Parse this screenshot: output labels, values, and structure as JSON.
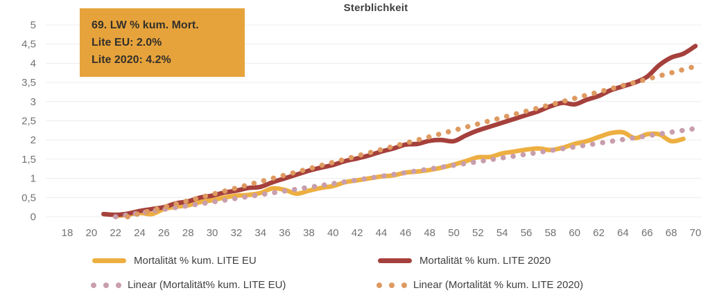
{
  "colors": {
    "gridline": "#ECECEC",
    "axis_label": "#757070",
    "title_text": "#3F3F3F",
    "legend_text": "#404040",
    "annotation_bg": "#E7A33B",
    "annotation_text": "#33302B"
  },
  "annotation": {
    "lines": [
      "69. LW % kum. Mort.",
      "Lite EU: 2.0%",
      "Lite 2020: 4.2%"
    ]
  },
  "chart_data": {
    "type": "line",
    "title": "Sterblichkeit",
    "xlabel": "",
    "ylabel": "",
    "x_range": [
      18,
      70
    ],
    "ylim": [
      0,
      5
    ],
    "grid": "horizontal",
    "legend_position": "bottom",
    "x_ticks": [
      18,
      20,
      22,
      24,
      26,
      28,
      30,
      32,
      34,
      36,
      38,
      40,
      42,
      44,
      46,
      48,
      50,
      52,
      54,
      56,
      58,
      60,
      62,
      64,
      66,
      68,
      70
    ],
    "y_ticks": [
      0,
      0.5,
      1,
      1.5,
      2,
      2.5,
      3,
      3.5,
      4,
      4.5,
      5
    ],
    "y_tick_labels": [
      "0",
      "0,5",
      "1",
      "1,5",
      "2",
      "2,5",
      "3",
      "3,5",
      "4",
      "4,5",
      "5"
    ],
    "series": [
      {
        "name": "Mortalität % kum. LITE EU",
        "color": "#EDAF41",
        "style": "solid",
        "points": [
          [
            22,
            0.02
          ],
          [
            23,
            0.05
          ],
          [
            24,
            0.1
          ],
          [
            25,
            0.07
          ],
          [
            26,
            0.2
          ],
          [
            27,
            0.26
          ],
          [
            28,
            0.3
          ],
          [
            29,
            0.38
          ],
          [
            30,
            0.43
          ],
          [
            31,
            0.5
          ],
          [
            32,
            0.55
          ],
          [
            33,
            0.57
          ],
          [
            34,
            0.62
          ],
          [
            35,
            0.74
          ],
          [
            36,
            0.7
          ],
          [
            37,
            0.6
          ],
          [
            38,
            0.68
          ],
          [
            39,
            0.75
          ],
          [
            40,
            0.8
          ],
          [
            41,
            0.9
          ],
          [
            42,
            0.95
          ],
          [
            43,
            1.0
          ],
          [
            44,
            1.05
          ],
          [
            45,
            1.08
          ],
          [
            46,
            1.15
          ],
          [
            47,
            1.18
          ],
          [
            48,
            1.22
          ],
          [
            49,
            1.28
          ],
          [
            50,
            1.36
          ],
          [
            51,
            1.45
          ],
          [
            52,
            1.55
          ],
          [
            53,
            1.56
          ],
          [
            54,
            1.65
          ],
          [
            55,
            1.7
          ],
          [
            56,
            1.75
          ],
          [
            57,
            1.78
          ],
          [
            58,
            1.74
          ],
          [
            59,
            1.8
          ],
          [
            60,
            1.9
          ],
          [
            61,
            1.97
          ],
          [
            62,
            2.08
          ],
          [
            63,
            2.18
          ],
          [
            64,
            2.2
          ],
          [
            65,
            2.05
          ],
          [
            66,
            2.15
          ],
          [
            67,
            2.15
          ],
          [
            68,
            1.97
          ],
          [
            69,
            2.03
          ]
        ]
      },
      {
        "name": "Mortalität % kum. LITE 2020",
        "color": "#A5403C",
        "style": "solid",
        "points": [
          [
            21,
            0.07
          ],
          [
            22,
            0.05
          ],
          [
            23,
            0.08
          ],
          [
            24,
            0.15
          ],
          [
            25,
            0.2
          ],
          [
            26,
            0.25
          ],
          [
            27,
            0.35
          ],
          [
            28,
            0.4
          ],
          [
            29,
            0.5
          ],
          [
            30,
            0.55
          ],
          [
            31,
            0.63
          ],
          [
            32,
            0.68
          ],
          [
            33,
            0.75
          ],
          [
            34,
            0.78
          ],
          [
            35,
            0.9
          ],
          [
            36,
            1.0
          ],
          [
            37,
            1.1
          ],
          [
            38,
            1.2
          ],
          [
            39,
            1.28
          ],
          [
            40,
            1.35
          ],
          [
            41,
            1.45
          ],
          [
            42,
            1.52
          ],
          [
            43,
            1.6
          ],
          [
            44,
            1.7
          ],
          [
            45,
            1.78
          ],
          [
            46,
            1.88
          ],
          [
            47,
            1.9
          ],
          [
            48,
            1.98
          ],
          [
            49,
            2.0
          ],
          [
            50,
            1.97
          ],
          [
            51,
            2.12
          ],
          [
            52,
            2.25
          ],
          [
            53,
            2.35
          ],
          [
            54,
            2.45
          ],
          [
            55,
            2.55
          ],
          [
            56,
            2.65
          ],
          [
            57,
            2.75
          ],
          [
            58,
            2.88
          ],
          [
            59,
            2.97
          ],
          [
            60,
            2.93
          ],
          [
            61,
            3.05
          ],
          [
            62,
            3.15
          ],
          [
            63,
            3.3
          ],
          [
            64,
            3.4
          ],
          [
            65,
            3.5
          ],
          [
            66,
            3.65
          ],
          [
            67,
            3.95
          ],
          [
            68,
            4.15
          ],
          [
            69,
            4.25
          ],
          [
            70,
            4.45
          ]
        ]
      },
      {
        "name": "Linear (Mortalität% kum. LITE EU)",
        "color": "#C89EAE",
        "style": "dotted",
        "points": [
          [
            22,
            0.0
          ],
          [
            70,
            2.3
          ]
        ]
      },
      {
        "name": "Linear (Mortalität % kum. LITE 2020)",
        "color": "#DE9A61",
        "style": "dotted",
        "points": [
          [
            23,
            0.0
          ],
          [
            70,
            3.92
          ]
        ]
      }
    ]
  }
}
